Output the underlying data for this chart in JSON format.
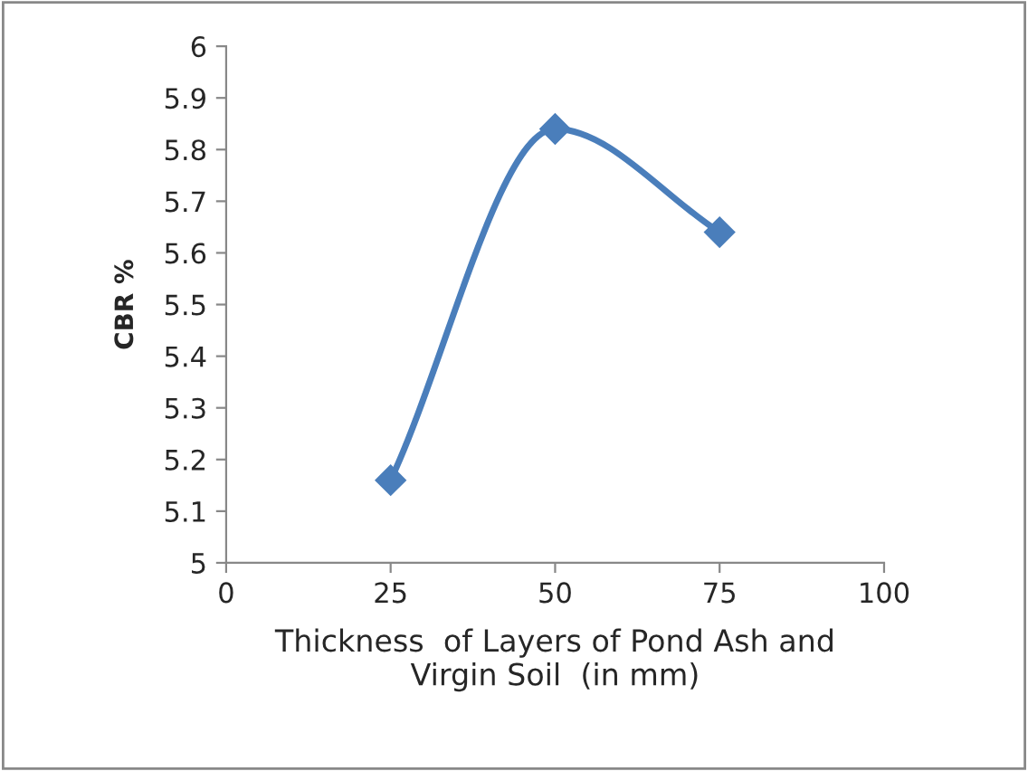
{
  "chart_data": {
    "type": "line",
    "xlabel": "Thickness  of Layers of Pond Ash and\nVirgin Soil  (in mm)",
    "ylabel": "CBR %",
    "x": [
      25,
      50,
      75
    ],
    "series": [
      {
        "color": "#4a7ebb",
        "values": [
          5.16,
          5.84,
          5.64
        ]
      }
    ],
    "xlim": [
      0,
      100
    ],
    "xticks": [
      0,
      25,
      50,
      75,
      100
    ],
    "ylim": [
      5,
      6
    ],
    "yticks": [
      5,
      5.1,
      5.2,
      5.3,
      5.4,
      5.5,
      5.6,
      5.7,
      5.8,
      5.9,
      6
    ],
    "marker": "diamond",
    "line_style": "solid",
    "grid": false,
    "legend": false
  }
}
